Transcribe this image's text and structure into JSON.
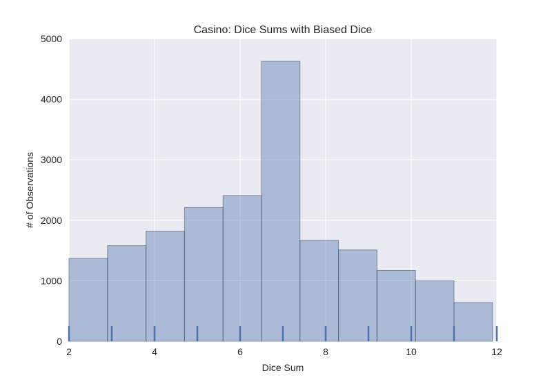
{
  "chart_data": {
    "type": "bar",
    "title": "Casino: Dice Sums with Biased Dice",
    "xlabel": "Dice Sum",
    "ylabel": "# of Observations",
    "xlim": [
      2,
      12
    ],
    "ylim": [
      0,
      5000
    ],
    "xticks": [
      "2",
      "4",
      "6",
      "8",
      "10",
      "12"
    ],
    "yticks": [
      "0",
      "1000",
      "2000",
      "3000",
      "4000",
      "5000"
    ],
    "bins": [
      {
        "start": 2.0,
        "end": 2.9,
        "value": 1370
      },
      {
        "start": 2.9,
        "end": 3.8,
        "value": 1580
      },
      {
        "start": 3.8,
        "end": 4.7,
        "value": 1820
      },
      {
        "start": 4.7,
        "end": 5.6,
        "value": 2210
      },
      {
        "start": 5.6,
        "end": 6.5,
        "value": 2410
      },
      {
        "start": 6.5,
        "end": 7.4,
        "value": 4630
      },
      {
        "start": 7.4,
        "end": 8.3,
        "value": 1670
      },
      {
        "start": 8.3,
        "end": 9.2,
        "value": 1510
      },
      {
        "start": 9.2,
        "end": 10.1,
        "value": 1170
      },
      {
        "start": 10.1,
        "end": 11.0,
        "value": 1000
      },
      {
        "start": 11.0,
        "end": 11.9,
        "value": 640
      }
    ],
    "rug": [
      2,
      3,
      4,
      5,
      6,
      7,
      8,
      9,
      10,
      11,
      12
    ],
    "grid": true,
    "colors": {
      "background": "#eaeaf2",
      "grid": "#ffffff",
      "bar_fill": "#4c72b0",
      "bar_stroke": "#3b4a66",
      "rug": "#4c72b0"
    }
  }
}
